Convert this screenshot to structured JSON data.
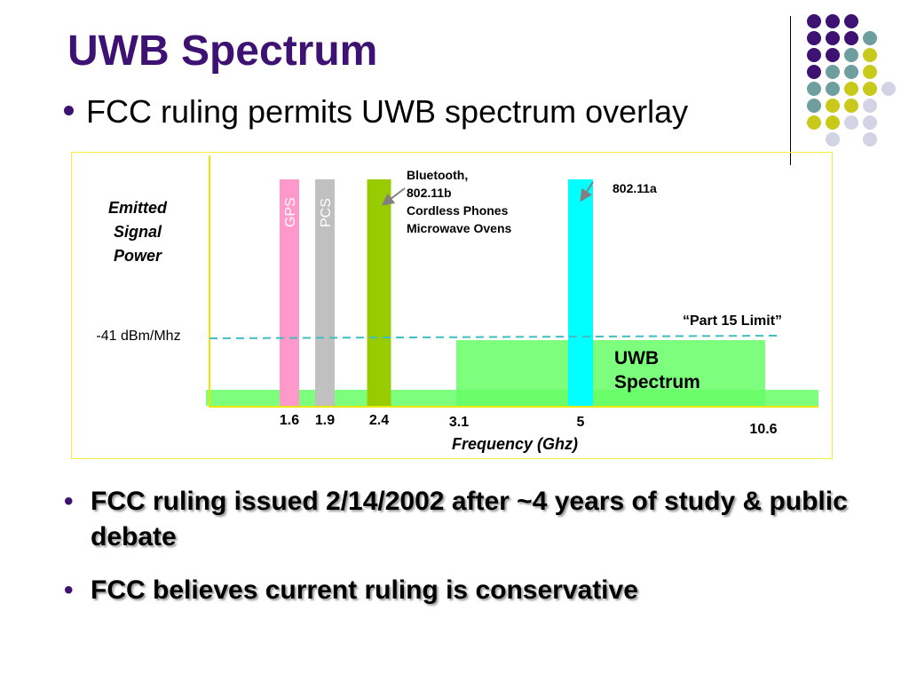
{
  "slide": {
    "title": "UWB Spectrum",
    "subtitle_bullet": "FCC ruling permits UWB spectrum overlay",
    "bullets": [
      "FCC ruling issued 2/14/2002 after  ~4 years of study & public debate",
      "FCC believes current ruling is conservative"
    ],
    "bullet_symbol": "•"
  },
  "colors": {
    "title": "#3d1273",
    "dot_purple": "#3d1273",
    "dot_teal": "#6f9e9e",
    "dot_yellow": "#c9c91c",
    "dot_lavender": "#d3d3e6",
    "chart_border": "#f2ef3a",
    "axis": "#e8e800",
    "limit_line": "#3fbfc0",
    "uwb_fill": "#66ff66",
    "band_gps": "#ff99cc",
    "band_pcs": "#c0c0c0",
    "band_24": "#99cc00",
    "band_80211a": "#00ffff",
    "arrow": "#808080"
  },
  "decor_dots": [
    [
      "purple",
      "purple",
      "purple",
      null
    ],
    [
      "purple",
      "purple",
      "purple",
      "teal"
    ],
    [
      "purple",
      "purple",
      "teal",
      "yellow"
    ],
    [
      "purple",
      "teal",
      "teal",
      "yellow"
    ],
    [
      "teal",
      "teal",
      "yellow",
      "yellow",
      "lavender"
    ],
    [
      "teal",
      "yellow",
      "yellow",
      "lavender"
    ],
    [
      "yellow",
      "yellow",
      "lavender",
      "lavender"
    ],
    [
      null,
      "lavender",
      null,
      "lavender"
    ]
  ],
  "chart_data": {
    "type": "diagram",
    "ylabel": "Emitted Signal Power",
    "xlabel": "Frequency (Ghz)",
    "limit_label": "-41 dBm/Mhz",
    "limit_name": "“Part 15 Limit”",
    "bands": [
      {
        "name": "GPS",
        "freq": 1.6,
        "tick_label": "1.6",
        "color": "#ff99cc",
        "vertical_label": "GPS"
      },
      {
        "name": "PCS",
        "freq": 1.9,
        "tick_label": "1.9",
        "color": "#c0c0c0",
        "vertical_label": "PCS"
      },
      {
        "name": "2.4",
        "freq": 2.4,
        "tick_label": "2.4",
        "color": "#99cc00",
        "vertical_label": ""
      },
      {
        "name": "802.11a",
        "freq": 5,
        "tick_label": "5",
        "color": "#00ffff",
        "vertical_label": ""
      }
    ],
    "annotations": [
      {
        "target": "2.4",
        "lines": [
          "Bluetooth,",
          "802.11b",
          "Cordless Phones",
          "Microwave Ovens"
        ]
      },
      {
        "target": "802.11a",
        "lines": [
          "802.11a"
        ]
      }
    ],
    "uwb": {
      "label": [
        "UWB",
        "Spectrum"
      ],
      "start": 3.1,
      "end": 10.6
    },
    "x_ticks": [
      {
        "label": "1.6",
        "value": 1.6
      },
      {
        "label": "1.9",
        "value": 1.9
      },
      {
        "label": "2.4",
        "value": 2.4
      },
      {
        "label": "3.1",
        "value": 3.1
      },
      {
        "label": "5",
        "value": 5
      },
      {
        "label": "10.6",
        "value": 10.6
      }
    ]
  }
}
